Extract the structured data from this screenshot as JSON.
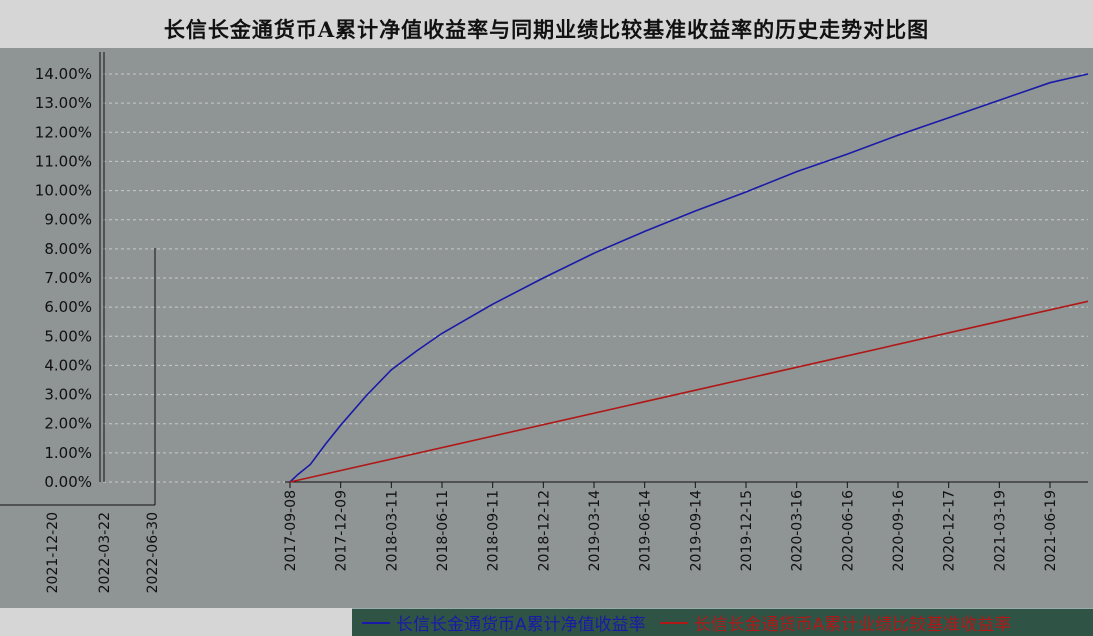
{
  "title": "长信长金通货币A累计净值收益率与同期业绩比较基准收益率的历史走势对比图",
  "colors": {
    "fund": "#1a1aa8",
    "benchmark": "#b01818",
    "plot_bg": "#8f9594",
    "legend_bg": "#2f5446"
  },
  "chart_data": {
    "type": "line",
    "title": "长信长金通货币A累计净值收益率与同期业绩比较基准收益率的历史走势对比图",
    "ylim": [
      0,
      14
    ],
    "y_ticks": [
      "0.00%",
      "1.00%",
      "2.00%",
      "3.00%",
      "4.00%",
      "5.00%",
      "6.00%",
      "7.00%",
      "8.00%",
      "9.00%",
      "10.00%",
      "11.00%",
      "12.00%",
      "13.00%",
      "14.00%"
    ],
    "x_ticks": [
      "2017-09-08",
      "2017-12-09",
      "2018-03-11",
      "2018-06-11",
      "2018-09-11",
      "2018-12-12",
      "2019-03-14",
      "2019-06-14",
      "2019-09-14",
      "2019-12-15",
      "2020-03-16",
      "2020-06-16",
      "2020-09-16",
      "2020-12-17",
      "2021-03-19",
      "2021-06-19"
    ],
    "x_ticks_extra": [
      "2021-12-20",
      "2022-03-22",
      "2022-06-30"
    ],
    "grid": true,
    "legend_position": "bottom",
    "series": [
      {
        "name": "长信长金通货币A累计净值收益率",
        "color": "#1a1aa8",
        "x": [
          0,
          0.15,
          0.4,
          0.7,
          1.0,
          1.5,
          2.0,
          2.5,
          3.0,
          3.5,
          4.0,
          5.0,
          6.0,
          7.0,
          8.0,
          9.0,
          10.0,
          11.0,
          12.0,
          13.0,
          14.0,
          15.0,
          15.75
        ],
        "y": [
          0,
          0.25,
          0.6,
          1.3,
          1.95,
          2.95,
          3.85,
          4.5,
          5.1,
          5.6,
          6.1,
          7.0,
          7.85,
          8.6,
          9.3,
          9.95,
          10.65,
          11.25,
          11.9,
          12.5,
          13.1,
          13.7,
          14.0
        ]
      },
      {
        "name": "长信长金通货币A累计业绩比较基准收益率",
        "color": "#b01818",
        "x": [
          0,
          15.75
        ],
        "y": [
          0,
          6.2
        ]
      }
    ]
  }
}
